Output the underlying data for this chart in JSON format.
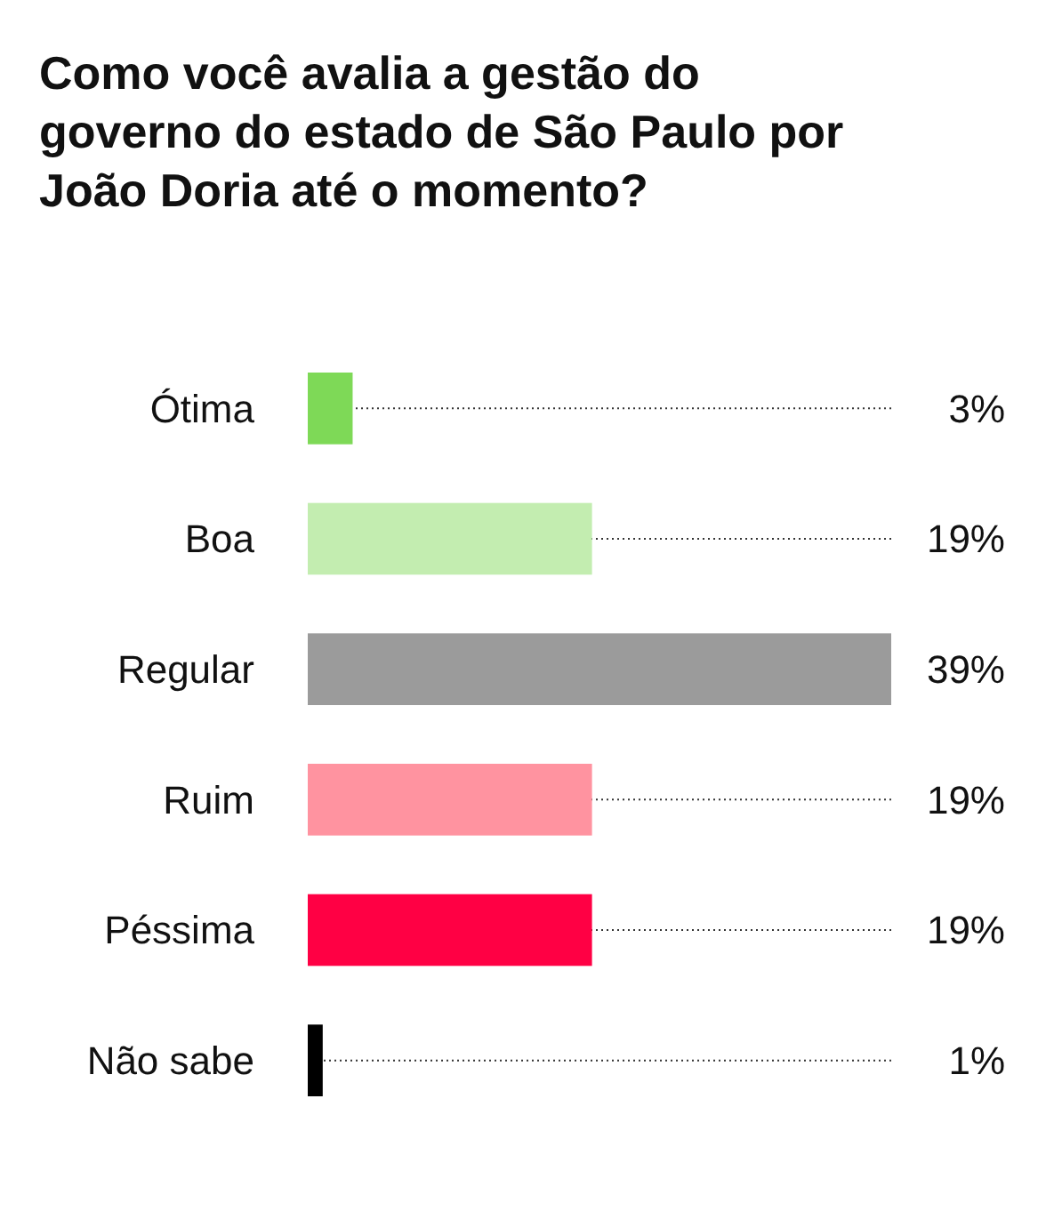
{
  "chart_data": {
    "type": "bar",
    "orientation": "horizontal",
    "title": "Como você avalia a gestão do governo do estado de São Paulo por João Doria até o momento?",
    "categories": [
      "Ótima",
      "Boa",
      "Regular",
      "Ruim",
      "Péssima",
      "Não sabe"
    ],
    "values": [
      3,
      19,
      39,
      19,
      19,
      1
    ],
    "colors": [
      "#7ed957",
      "#c3edb0",
      "#9b9b9b",
      "#ff93a0",
      "#ff0044",
      "#000000"
    ],
    "value_labels": [
      "3%",
      "19%",
      "39%",
      "19%",
      "19%",
      "1%"
    ],
    "xlim": [
      0,
      39
    ]
  }
}
